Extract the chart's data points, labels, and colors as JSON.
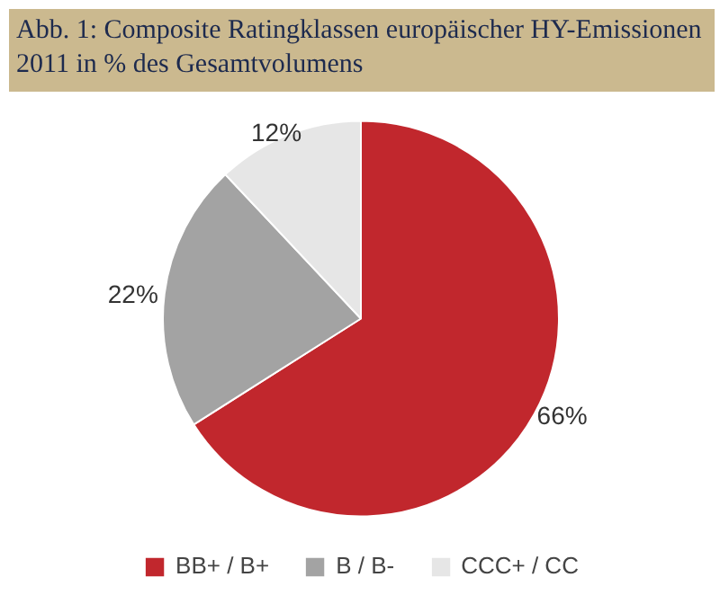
{
  "chart_data": {
    "type": "pie",
    "title": "Abb. 1: Composite Ratingklassen europäischer HY-Emissionen 2011 in % des Gesamtvolumens",
    "categories": [
      "BB+ / B+",
      "B / B-",
      "CCC+ / CC"
    ],
    "values": [
      66,
      22,
      12
    ],
    "colors": [
      "#c1272d",
      "#a3a3a3",
      "#e6e6e6"
    ],
    "value_labels": [
      "66%",
      "22%",
      "12%"
    ],
    "legend": "bottom"
  }
}
